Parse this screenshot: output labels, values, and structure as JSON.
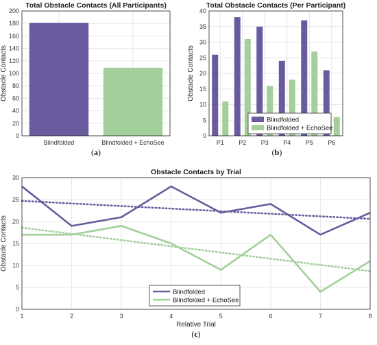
{
  "colors": {
    "blindfolded": "#6a5a9e",
    "echosee": "#a3cf9a"
  },
  "chart_data": [
    {
      "panel": "a",
      "type": "bar",
      "title": "Total Obstacle Contacts (All Participants)",
      "caption": "(a)",
      "xlabel": "",
      "ylabel": "Obstacle Contacts",
      "ylim": [
        0,
        200
      ],
      "yticks": [
        0,
        20,
        40,
        60,
        80,
        100,
        120,
        140,
        160,
        180,
        200
      ],
      "categories": [
        "Blindfolded",
        "Blindfolded + EchoSee"
      ],
      "values": [
        181,
        109
      ],
      "grid": true
    },
    {
      "panel": "b",
      "type": "bar",
      "title": "Total Obstacle Contacts (Per Participant)",
      "caption": "(b)",
      "xlabel": "",
      "ylabel": "Obstacle Contacts",
      "ylim": [
        0,
        40
      ],
      "yticks": [
        0,
        5,
        10,
        15,
        20,
        25,
        30,
        35,
        40
      ],
      "categories": [
        "P1",
        "P2",
        "P3",
        "P4",
        "P5",
        "P6"
      ],
      "series": [
        {
          "name": "Blindfolded",
          "values": [
            26,
            38,
            35,
            24,
            37,
            21
          ]
        },
        {
          "name": "Blindfolded + EchoSee",
          "values": [
            11,
            31,
            16,
            18,
            27,
            6
          ]
        }
      ],
      "legend": "bottom-center",
      "grid": true
    },
    {
      "panel": "c",
      "type": "line",
      "title": "Obstacle Contacts by Trial",
      "caption": "(c)",
      "xlabel": "Relative Trial",
      "ylabel": "Obstacle Contacts",
      "xlim": [
        1,
        8
      ],
      "ylim": [
        0,
        30
      ],
      "xticks": [
        1,
        2,
        3,
        4,
        5,
        6,
        7,
        8
      ],
      "yticks": [
        0,
        5,
        10,
        15,
        20,
        25,
        30
      ],
      "x": [
        1,
        2,
        3,
        4,
        5,
        6,
        7,
        8
      ],
      "series": [
        {
          "name": "Blindfolded",
          "values": [
            28,
            19,
            21,
            28,
            22,
            24,
            17,
            22
          ],
          "trend": [
            24.7,
            20.6
          ]
        },
        {
          "name": "Blindfolded + EchoSee",
          "values": [
            17,
            17,
            19,
            15,
            9,
            17,
            4,
            11
          ],
          "trend": [
            18.6,
            8.7
          ]
        }
      ],
      "trendline_style": "dotted",
      "legend": "bottom-left",
      "grid": true
    }
  ]
}
